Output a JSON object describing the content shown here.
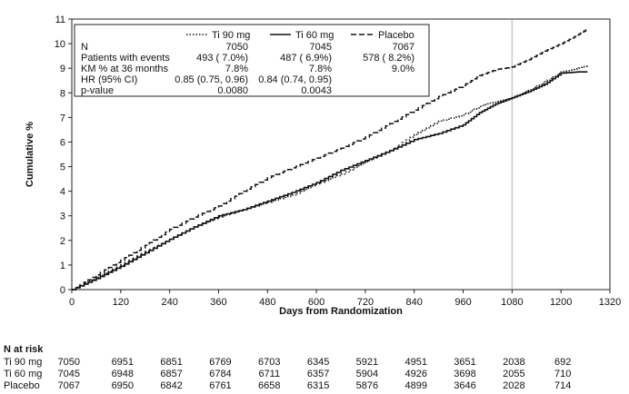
{
  "chart_data": {
    "type": "line",
    "xlabel": "Days from Randomization",
    "ylabel": "Cumulative %",
    "xlim": [
      0,
      1320
    ],
    "ylim": [
      0,
      11
    ],
    "xticks": [
      0,
      120,
      240,
      360,
      480,
      600,
      720,
      840,
      960,
      1080,
      1200,
      1320
    ],
    "yticks": [
      0,
      1,
      2,
      3,
      4,
      5,
      6,
      7,
      8,
      9,
      10,
      11
    ],
    "reference_line_x": 1080,
    "series": [
      {
        "name": "Ti 90 mg",
        "style": "dotted",
        "x": [
          0,
          60,
          120,
          180,
          240,
          300,
          360,
          420,
          480,
          540,
          600,
          660,
          720,
          780,
          840,
          900,
          960,
          1000,
          1040,
          1080,
          1120,
          1160,
          1200,
          1240,
          1265
        ],
        "y": [
          0,
          0.5,
          1.0,
          1.55,
          2.05,
          2.55,
          2.95,
          3.25,
          3.55,
          3.85,
          4.3,
          4.7,
          5.2,
          5.65,
          6.3,
          6.85,
          7.1,
          7.45,
          7.65,
          7.8,
          8.1,
          8.45,
          8.85,
          9.0,
          9.1
        ]
      },
      {
        "name": "Ti 60 mg",
        "style": "solid",
        "x": [
          0,
          60,
          120,
          180,
          240,
          300,
          360,
          420,
          480,
          540,
          600,
          660,
          720,
          780,
          840,
          900,
          960,
          1000,
          1040,
          1080,
          1120,
          1160,
          1200,
          1240,
          1265
        ],
        "y": [
          0,
          0.45,
          0.95,
          1.5,
          2.05,
          2.55,
          3.0,
          3.25,
          3.6,
          3.95,
          4.35,
          4.85,
          5.25,
          5.65,
          6.1,
          6.35,
          6.7,
          7.2,
          7.55,
          7.8,
          8.05,
          8.35,
          8.8,
          8.85,
          8.85
        ]
      },
      {
        "name": "Placebo",
        "style": "dashed",
        "x": [
          0,
          60,
          120,
          180,
          240,
          300,
          360,
          420,
          480,
          540,
          600,
          660,
          720,
          780,
          840,
          900,
          960,
          1000,
          1040,
          1080,
          1120,
          1160,
          1200,
          1240,
          1265
        ],
        "y": [
          0,
          0.6,
          1.2,
          1.8,
          2.45,
          2.95,
          3.4,
          4.0,
          4.55,
          4.95,
          5.35,
          5.75,
          6.2,
          6.75,
          7.3,
          7.85,
          8.3,
          8.7,
          8.95,
          9.05,
          9.35,
          9.7,
          10.0,
          10.35,
          10.6
        ]
      }
    ]
  },
  "legend": {
    "headers": [
      "Ti 90 mg",
      "Ti 60 mg",
      "Placebo"
    ],
    "rows": [
      {
        "label": "N",
        "values": [
          "7050",
          "7045",
          "7067"
        ]
      },
      {
        "label": "Patients with events",
        "values": [
          "493 ( 7.0%)",
          "487 ( 6.9%)",
          "578 ( 8.2%)"
        ]
      },
      {
        "label": "KM % at 36 months",
        "values": [
          "7.8%",
          "7.8%",
          "9.0%"
        ]
      },
      {
        "label": "HR (95% CI)",
        "values": [
          "0.85 (0.75, 0.96)",
          "0.84 (0.74, 0.95)",
          ""
        ]
      },
      {
        "label": "p-value",
        "values": [
          "0.0080",
          "0.0043",
          ""
        ]
      }
    ]
  },
  "risk_table": {
    "title": "N at risk",
    "rows": [
      {
        "label": "Ti 90 mg",
        "values": [
          "7050",
          "6951",
          "6851",
          "6769",
          "6703",
          "6345",
          "5921",
          "4951",
          "3651",
          "2038",
          "692"
        ]
      },
      {
        "label": "Ti 60 mg",
        "values": [
          "7045",
          "6948",
          "6857",
          "6784",
          "6711",
          "6357",
          "5904",
          "4926",
          "3698",
          "2055",
          "710"
        ]
      },
      {
        "label": "Placebo",
        "values": [
          "7067",
          "6950",
          "6842",
          "6761",
          "6658",
          "6315",
          "5876",
          "4899",
          "3646",
          "2028",
          "714"
        ]
      }
    ]
  },
  "colors": {
    "line": "#111111",
    "refline": "#c8c8c8",
    "frame": "#222222"
  }
}
